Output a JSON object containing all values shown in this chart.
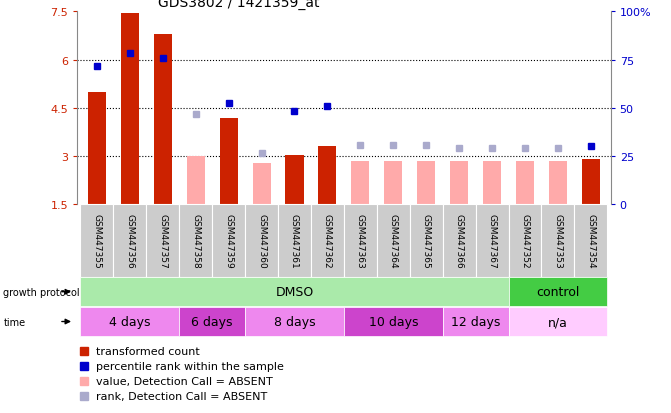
{
  "title": "GDS3802 / 1421359_at",
  "samples": [
    "GSM447355",
    "GSM447356",
    "GSM447357",
    "GSM447358",
    "GSM447359",
    "GSM447360",
    "GSM447361",
    "GSM447362",
    "GSM447363",
    "GSM447364",
    "GSM447365",
    "GSM447366",
    "GSM447367",
    "GSM447352",
    "GSM447353",
    "GSM447354"
  ],
  "bar_values": [
    5.0,
    7.45,
    6.8,
    null,
    4.2,
    null,
    3.05,
    3.3,
    null,
    null,
    null,
    null,
    null,
    null,
    null,
    2.9
  ],
  "bar_absent_values": [
    null,
    null,
    null,
    3.0,
    null,
    2.8,
    null,
    null,
    2.85,
    2.85,
    2.85,
    2.85,
    2.85,
    2.85,
    2.85,
    null
  ],
  "rank_present": [
    5.8,
    6.2,
    6.05,
    null,
    4.65,
    null,
    4.4,
    4.55,
    null,
    null,
    null,
    null,
    null,
    null,
    null,
    3.3
  ],
  "rank_absent": [
    null,
    null,
    null,
    4.3,
    null,
    3.1,
    null,
    null,
    3.35,
    3.35,
    3.35,
    3.25,
    3.25,
    3.25,
    3.25,
    null
  ],
  "ylim": [
    1.5,
    7.5
  ],
  "yticks": [
    1.5,
    3.0,
    4.5,
    6.0,
    7.5
  ],
  "ytick_labels": [
    "1.5",
    "3",
    "4.5",
    "6",
    "7.5"
  ],
  "right_yticks": [
    0,
    25,
    50,
    75,
    100
  ],
  "right_ytick_labels": [
    "0",
    "25",
    "50",
    "75",
    "100%"
  ],
  "bar_color_present": "#cc2200",
  "bar_color_absent": "#ffaaaa",
  "dot_color_present": "#0000cc",
  "dot_color_absent": "#aaaacc",
  "groups": [
    {
      "label": "DMSO",
      "color": "#aaeaaa",
      "start": 0,
      "end": 13
    },
    {
      "label": "control",
      "color": "#44cc44",
      "start": 13,
      "end": 16
    }
  ],
  "time_groups": [
    {
      "label": "4 days",
      "color": "#ee88ee",
      "start": 0,
      "end": 3
    },
    {
      "label": "6 days",
      "color": "#cc44cc",
      "start": 3,
      "end": 5
    },
    {
      "label": "8 days",
      "color": "#ee88ee",
      "start": 5,
      "end": 8
    },
    {
      "label": "10 days",
      "color": "#cc44cc",
      "start": 8,
      "end": 11
    },
    {
      "label": "12 days",
      "color": "#ee88ee",
      "start": 11,
      "end": 13
    },
    {
      "label": "n/a",
      "color": "#ffccff",
      "start": 13,
      "end": 16
    }
  ],
  "growth_protocol_label": "growth protocol",
  "time_label": "time",
  "legend_items": [
    {
      "label": "transformed count",
      "color": "#cc2200"
    },
    {
      "label": "percentile rank within the sample",
      "color": "#0000cc"
    },
    {
      "label": "value, Detection Call = ABSENT",
      "color": "#ffaaaa"
    },
    {
      "label": "rank, Detection Call = ABSENT",
      "color": "#aaaacc"
    }
  ],
  "background_color": "#ffffff"
}
